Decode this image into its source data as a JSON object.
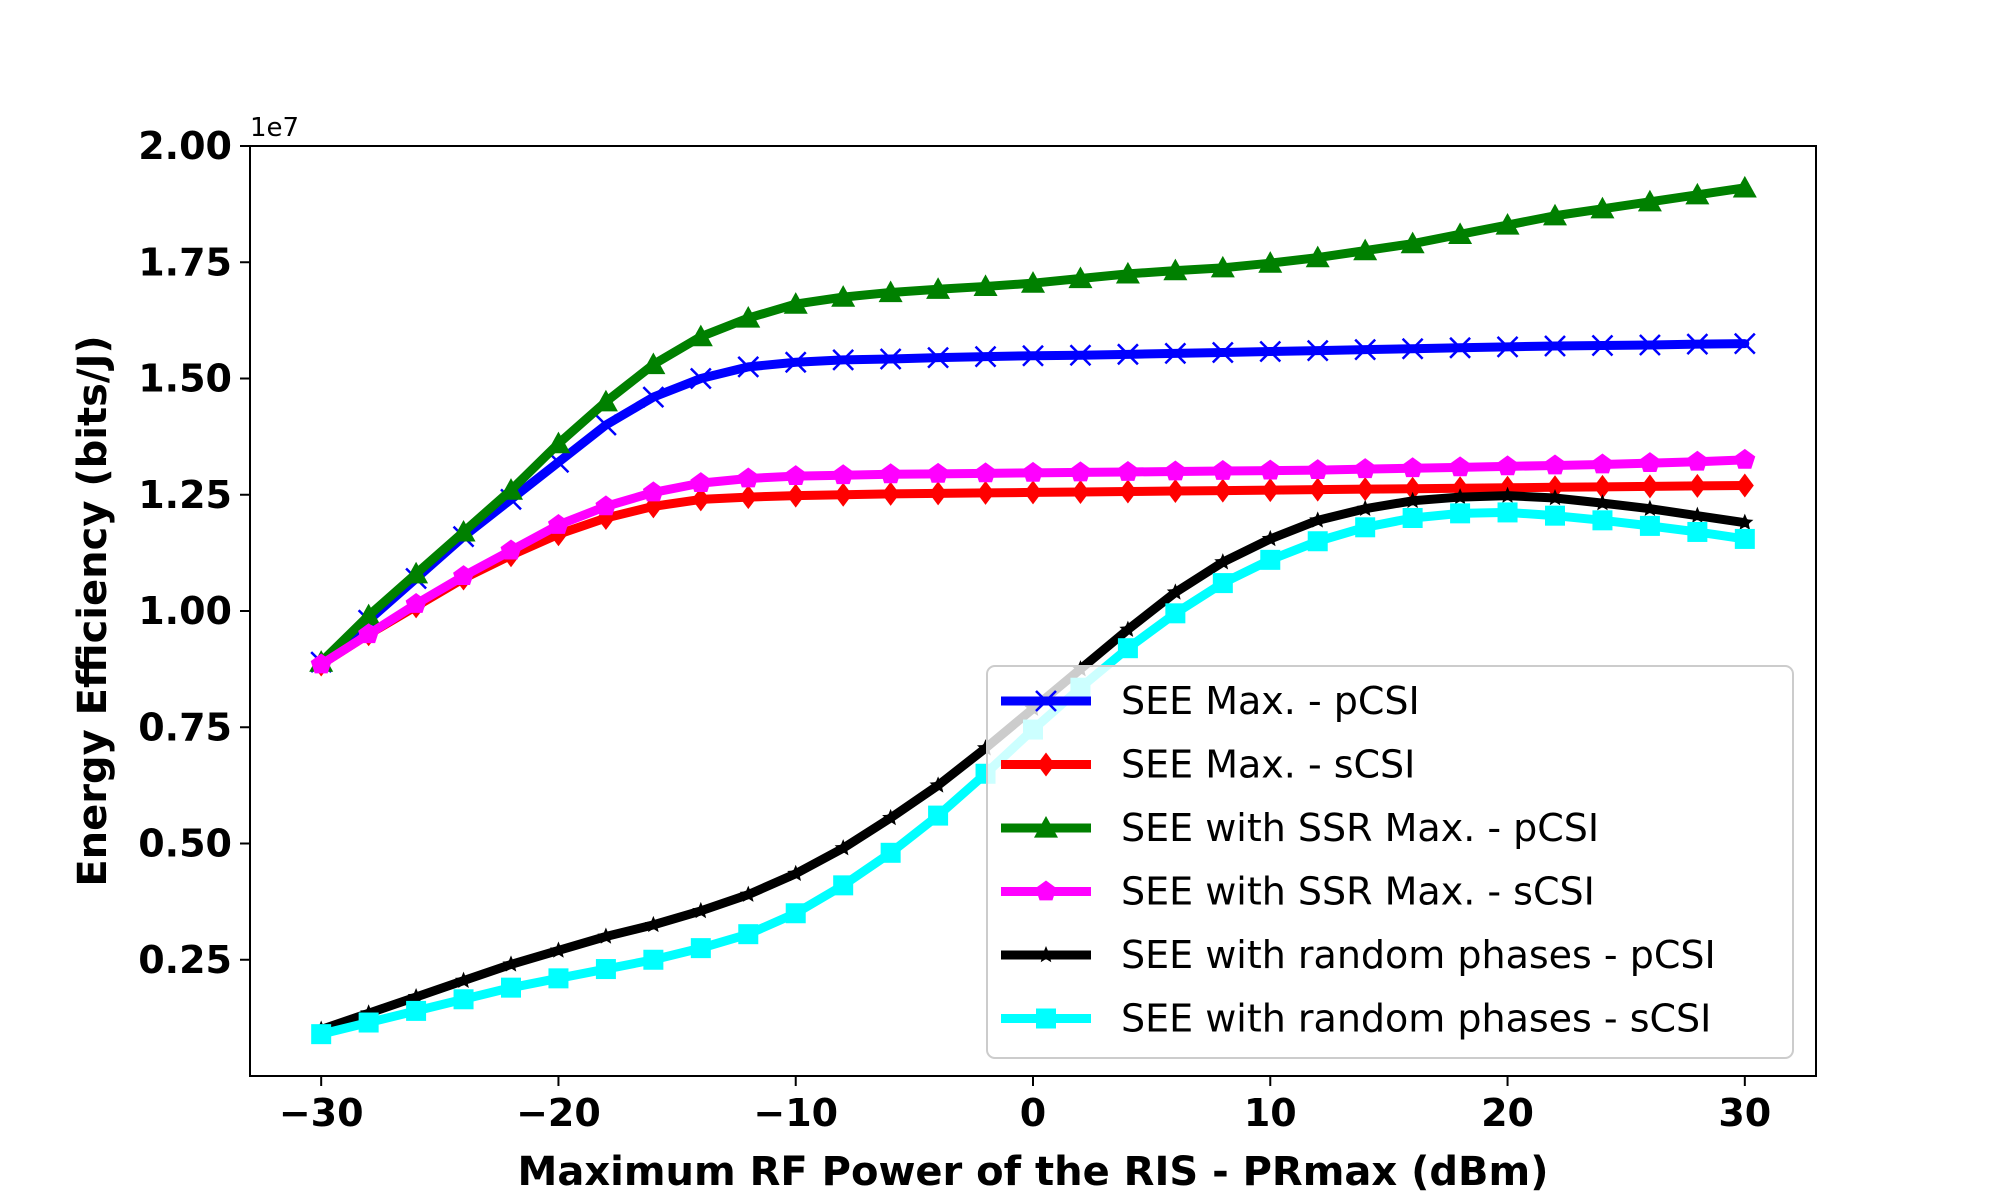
{
  "chart_data": {
    "type": "line",
    "xlabel": "Maximum RF Power of the RIS - PRmax (dBm)",
    "ylabel": "Energy Efficiency (bits/J)",
    "y_offset_label": "1e7",
    "x_ticks": [
      "−30",
      "−20",
      "−10",
      "0",
      "10",
      "20",
      "30"
    ],
    "y_ticks": [
      "0.25",
      "0.50",
      "0.75",
      "1.00",
      "1.25",
      "1.50",
      "1.75",
      "2.00"
    ],
    "xlim": [
      -33,
      33
    ],
    "ylim": [
      0.0,
      2.0
    ],
    "y_scale": 10000000,
    "grid": false,
    "legend_position": "lower-right",
    "x": [
      -30,
      -28,
      -26,
      -24,
      -22,
      -20,
      -18,
      -16,
      -14,
      -12,
      -10,
      -8,
      -6,
      -4,
      -2,
      0,
      2,
      4,
      6,
      8,
      10,
      12,
      14,
      16,
      18,
      20,
      22,
      24,
      26,
      28,
      30
    ],
    "series": [
      {
        "name": "SEE Max. - pCSI",
        "color": "#0000ff",
        "marker": "x",
        "values": [
          0.89,
          0.98,
          1.07,
          1.16,
          1.24,
          1.32,
          1.4,
          1.46,
          1.5,
          1.525,
          1.535,
          1.54,
          1.542,
          1.545,
          1.547,
          1.549,
          1.55,
          1.552,
          1.554,
          1.556,
          1.558,
          1.56,
          1.562,
          1.564,
          1.566,
          1.568,
          1.57,
          1.571,
          1.572,
          1.574,
          1.575
        ]
      },
      {
        "name": "SEE Max. - sCSI",
        "color": "#ff0000",
        "marker": "diamond",
        "values": [
          0.885,
          0.95,
          1.01,
          1.07,
          1.12,
          1.165,
          1.2,
          1.225,
          1.24,
          1.245,
          1.248,
          1.25,
          1.252,
          1.253,
          1.254,
          1.255,
          1.256,
          1.257,
          1.258,
          1.259,
          1.26,
          1.261,
          1.262,
          1.263,
          1.264,
          1.265,
          1.266,
          1.267,
          1.268,
          1.269,
          1.27
        ]
      },
      {
        "name": "SEE with SSR Max. - pCSI",
        "color": "#008000",
        "marker": "triangle",
        "values": [
          0.89,
          0.99,
          1.08,
          1.17,
          1.26,
          1.36,
          1.45,
          1.53,
          1.59,
          1.63,
          1.66,
          1.675,
          1.685,
          1.692,
          1.698,
          1.705,
          1.715,
          1.725,
          1.732,
          1.738,
          1.748,
          1.76,
          1.775,
          1.79,
          1.81,
          1.83,
          1.85,
          1.865,
          1.88,
          1.895,
          1.91
        ]
      },
      {
        "name": "SEE with SSR Max. - sCSI",
        "color": "#ff00ff",
        "marker": "pentagon",
        "values": [
          0.885,
          0.95,
          1.015,
          1.075,
          1.13,
          1.185,
          1.225,
          1.255,
          1.275,
          1.285,
          1.29,
          1.292,
          1.294,
          1.295,
          1.296,
          1.297,
          1.298,
          1.299,
          1.3,
          1.301,
          1.302,
          1.303,
          1.305,
          1.307,
          1.309,
          1.311,
          1.313,
          1.315,
          1.318,
          1.321,
          1.325
        ]
      },
      {
        "name": "SEE with random phases - pCSI",
        "color": "#000000",
        "marker": "star",
        "values": [
          0.1,
          0.135,
          0.17,
          0.205,
          0.24,
          0.27,
          0.3,
          0.325,
          0.355,
          0.39,
          0.435,
          0.49,
          0.555,
          0.625,
          0.705,
          0.79,
          0.875,
          0.96,
          1.04,
          1.105,
          1.155,
          1.195,
          1.22,
          1.237,
          1.245,
          1.248,
          1.243,
          1.232,
          1.22,
          1.205,
          1.19
        ]
      },
      {
        "name": "SEE with random phases - sCSI",
        "color": "#00ffff",
        "marker": "square",
        "values": [
          0.09,
          0.115,
          0.14,
          0.165,
          0.19,
          0.21,
          0.23,
          0.25,
          0.275,
          0.305,
          0.35,
          0.41,
          0.48,
          0.56,
          0.65,
          0.745,
          0.835,
          0.92,
          0.995,
          1.06,
          1.11,
          1.15,
          1.18,
          1.2,
          1.21,
          1.212,
          1.205,
          1.195,
          1.183,
          1.17,
          1.155
        ]
      }
    ]
  }
}
